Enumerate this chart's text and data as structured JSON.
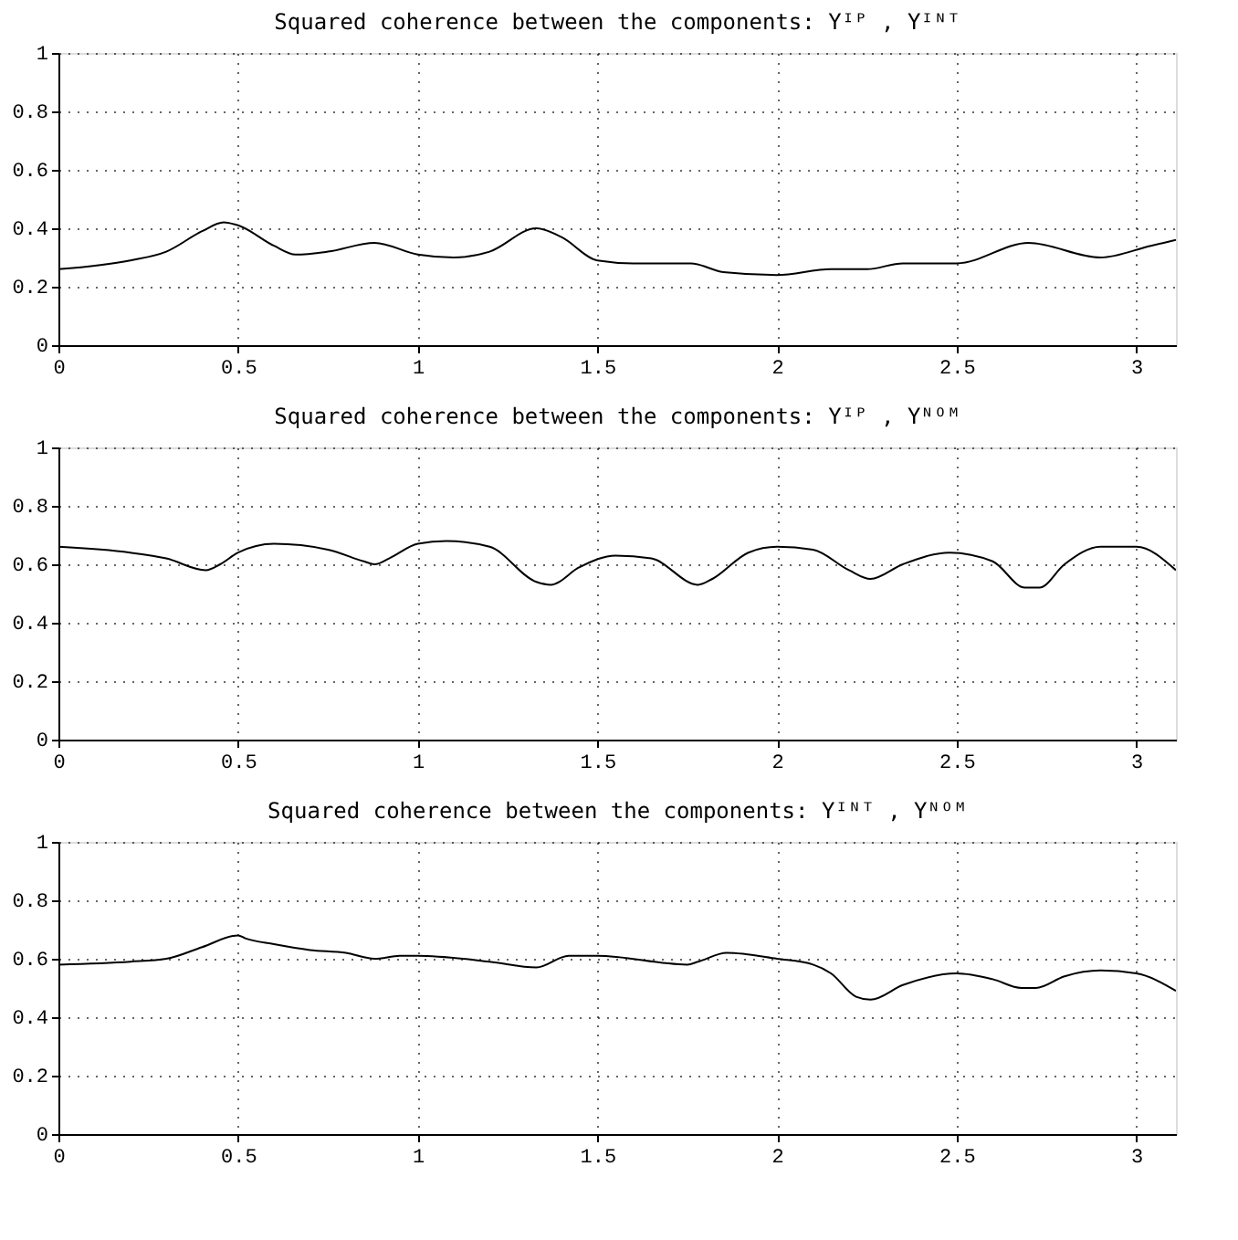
{
  "chart_data": [
    {
      "type": "line",
      "title": "Squared coherence between the components: Yᴵᴾ , Yᴵᴺᵀ",
      "xlim": [
        0,
        3.11
      ],
      "ylim": [
        0,
        1
      ],
      "xticks": [
        0,
        0.5,
        1,
        1.5,
        2,
        2.5,
        3
      ],
      "yticks": [
        0,
        0.2,
        0.4,
        0.6,
        0.8,
        1
      ],
      "grid": true,
      "line_style": "solid",
      "marker": "none",
      "series": [
        {
          "color": "#000000",
          "x": [
            0,
            0.2,
            0.3,
            0.4,
            0.46,
            0.5,
            0.6,
            0.66,
            0.75,
            0.88,
            1.0,
            1.1,
            1.2,
            1.33,
            1.4,
            1.5,
            1.6,
            1.72,
            1.76,
            1.85,
            2.0,
            2.15,
            2.2,
            2.25,
            2.35,
            2.5,
            2.7,
            2.9,
            3.04,
            3.11
          ],
          "values": [
            0.26,
            0.29,
            0.32,
            0.39,
            0.42,
            0.41,
            0.34,
            0.31,
            0.32,
            0.35,
            0.31,
            0.3,
            0.32,
            0.4,
            0.37,
            0.29,
            0.28,
            0.28,
            0.28,
            0.25,
            0.24,
            0.26,
            0.26,
            0.26,
            0.28,
            0.28,
            0.35,
            0.3,
            0.34,
            0.36
          ]
        }
      ]
    },
    {
      "type": "line",
      "title": "Squared coherence between the components: Yᴵᴾ , Yᴺᴼᴹ",
      "xlim": [
        0,
        3.11
      ],
      "ylim": [
        0,
        1
      ],
      "xticks": [
        0,
        0.5,
        1,
        1.5,
        2,
        2.5,
        3
      ],
      "yticks": [
        0,
        0.2,
        0.4,
        0.6,
        0.8,
        1
      ],
      "grid": true,
      "line_style": "solid",
      "marker": "none",
      "series": [
        {
          "color": "#000000",
          "x": [
            0,
            0.2,
            0.3,
            0.41,
            0.45,
            0.5,
            0.6,
            0.75,
            0.85,
            0.88,
            0.92,
            1.0,
            1.08,
            1.2,
            1.33,
            1.37,
            1.45,
            1.55,
            1.65,
            1.78,
            1.82,
            1.92,
            2.0,
            2.1,
            2.2,
            2.26,
            2.35,
            2.48,
            2.6,
            2.69,
            2.73,
            2.8,
            2.9,
            3.0,
            3.11
          ],
          "values": [
            0.66,
            0.64,
            0.62,
            0.58,
            0.6,
            0.64,
            0.67,
            0.65,
            0.61,
            0.6,
            0.62,
            0.67,
            0.68,
            0.66,
            0.54,
            0.53,
            0.59,
            0.63,
            0.62,
            0.53,
            0.55,
            0.64,
            0.66,
            0.65,
            0.58,
            0.55,
            0.6,
            0.64,
            0.61,
            0.52,
            0.52,
            0.6,
            0.66,
            0.66,
            0.58
          ]
        }
      ]
    },
    {
      "type": "line",
      "title": "Squared coherence between the components: Yᴵᴺᵀ , Yᴺᴼᴹ",
      "xlim": [
        0,
        3.11
      ],
      "ylim": [
        0,
        1
      ],
      "xticks": [
        0,
        0.5,
        1,
        1.5,
        2,
        2.5,
        3
      ],
      "yticks": [
        0,
        0.2,
        0.4,
        0.6,
        0.8,
        1
      ],
      "grid": true,
      "line_style": "solid",
      "marker": "none",
      "series": [
        {
          "color": "#000000",
          "x": [
            0,
            0.2,
            0.3,
            0.4,
            0.5,
            0.52,
            0.6,
            0.7,
            0.8,
            0.88,
            0.95,
            1.0,
            1.2,
            1.33,
            1.42,
            1.5,
            1.75,
            1.78,
            1.86,
            2.0,
            2.1,
            2.15,
            2.22,
            2.26,
            2.35,
            2.5,
            2.6,
            2.68,
            2.72,
            2.8,
            2.9,
            3.0,
            3.11
          ],
          "values": [
            0.58,
            0.59,
            0.6,
            0.64,
            0.68,
            0.67,
            0.65,
            0.63,
            0.62,
            0.6,
            0.61,
            0.61,
            0.59,
            0.57,
            0.61,
            0.61,
            0.58,
            0.59,
            0.62,
            0.6,
            0.58,
            0.55,
            0.47,
            0.46,
            0.51,
            0.55,
            0.53,
            0.5,
            0.5,
            0.54,
            0.56,
            0.55,
            0.49
          ]
        }
      ]
    }
  ]
}
